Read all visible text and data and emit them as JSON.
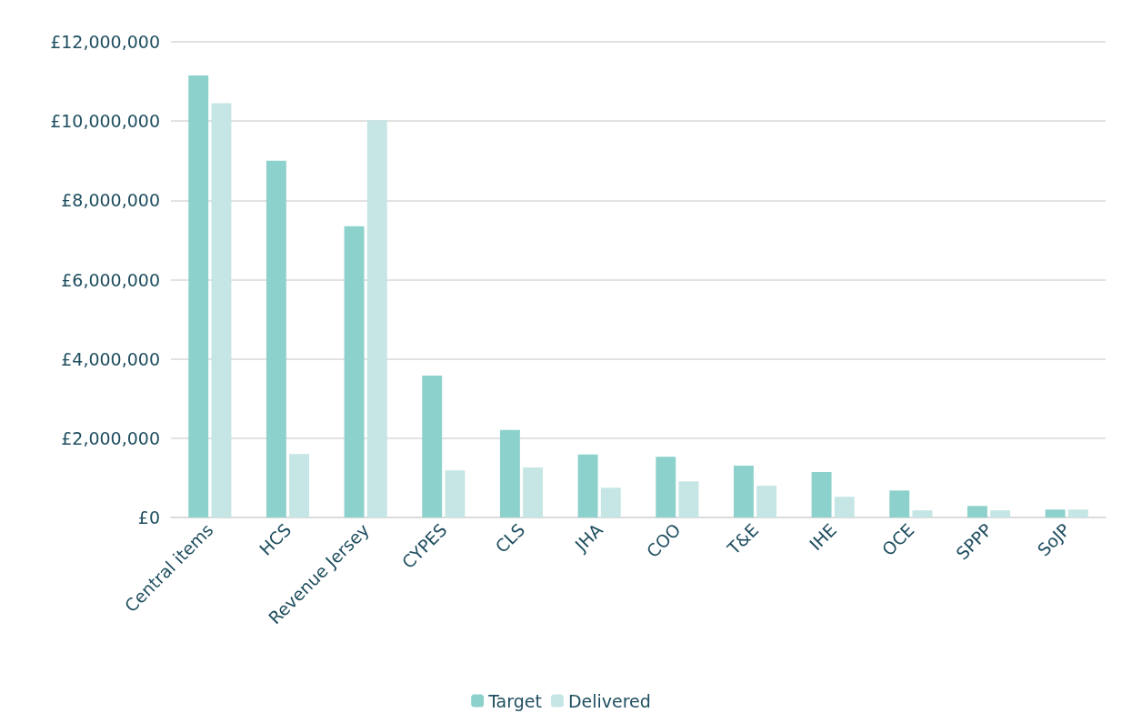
{
  "chart_data": {
    "type": "bar",
    "categories": [
      "Central items",
      "HCS",
      "Revenue Jersey",
      "CYPES",
      "CLS",
      "JHA",
      "COO",
      "T&E",
      "IHE",
      "OCE",
      "SPPP",
      "SoJP"
    ],
    "series": [
      {
        "name": "Target",
        "color": "#8dd1cc",
        "values": [
          11150000,
          9000000,
          7350000,
          3580000,
          2210000,
          1590000,
          1530000,
          1310000,
          1150000,
          680000,
          290000,
          200000
        ]
      },
      {
        "name": "Delivered",
        "color": "#c5e6e4",
        "values": [
          10450000,
          1600000,
          10020000,
          1190000,
          1260000,
          750000,
          910000,
          800000,
          520000,
          180000,
          180000,
          200000
        ]
      }
    ],
    "ylim": [
      0,
      12000000
    ],
    "yticks": [
      {
        "value": 0,
        "label": "£0"
      },
      {
        "value": 2000000,
        "label": "£2,000,000"
      },
      {
        "value": 4000000,
        "label": "£4,000,000"
      },
      {
        "value": 6000000,
        "label": "£6,000,000"
      },
      {
        "value": 8000000,
        "label": "£8,000,000"
      },
      {
        "value": 10000000,
        "label": "£10,000,000"
      },
      {
        "value": 12000000,
        "label": "£12,000,000"
      }
    ],
    "grid": "y",
    "legend": "bottom"
  }
}
